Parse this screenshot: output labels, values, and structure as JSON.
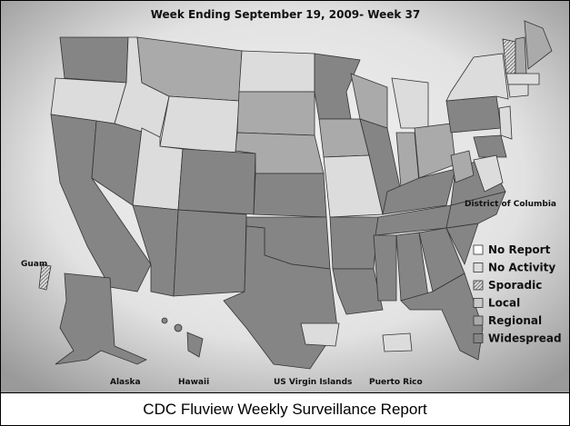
{
  "title": "Week Ending September 19, 2009- Week 37",
  "legend": [
    {
      "name": "No Report",
      "color": "#ffffff"
    },
    {
      "name": "No Activity",
      "color": "#dcdcdc"
    },
    {
      "name": "Sporadic",
      "color": "hatch"
    },
    {
      "name": "Local",
      "color": "#c9c9c9"
    },
    {
      "name": "Regional",
      "color": "#aaaaaa"
    },
    {
      "name": "Widespread",
      "color": "#858585"
    }
  ],
  "territories": {
    "guam": "Guam",
    "alaska": "Alaska",
    "hawaii": "Hawaii",
    "virgin_islands": "US Virgin Islands",
    "puerto_rico": "Puerto Rico",
    "dc": "District of Columbia"
  },
  "caption": "CDC Fluview Weekly Surveillance Report"
}
